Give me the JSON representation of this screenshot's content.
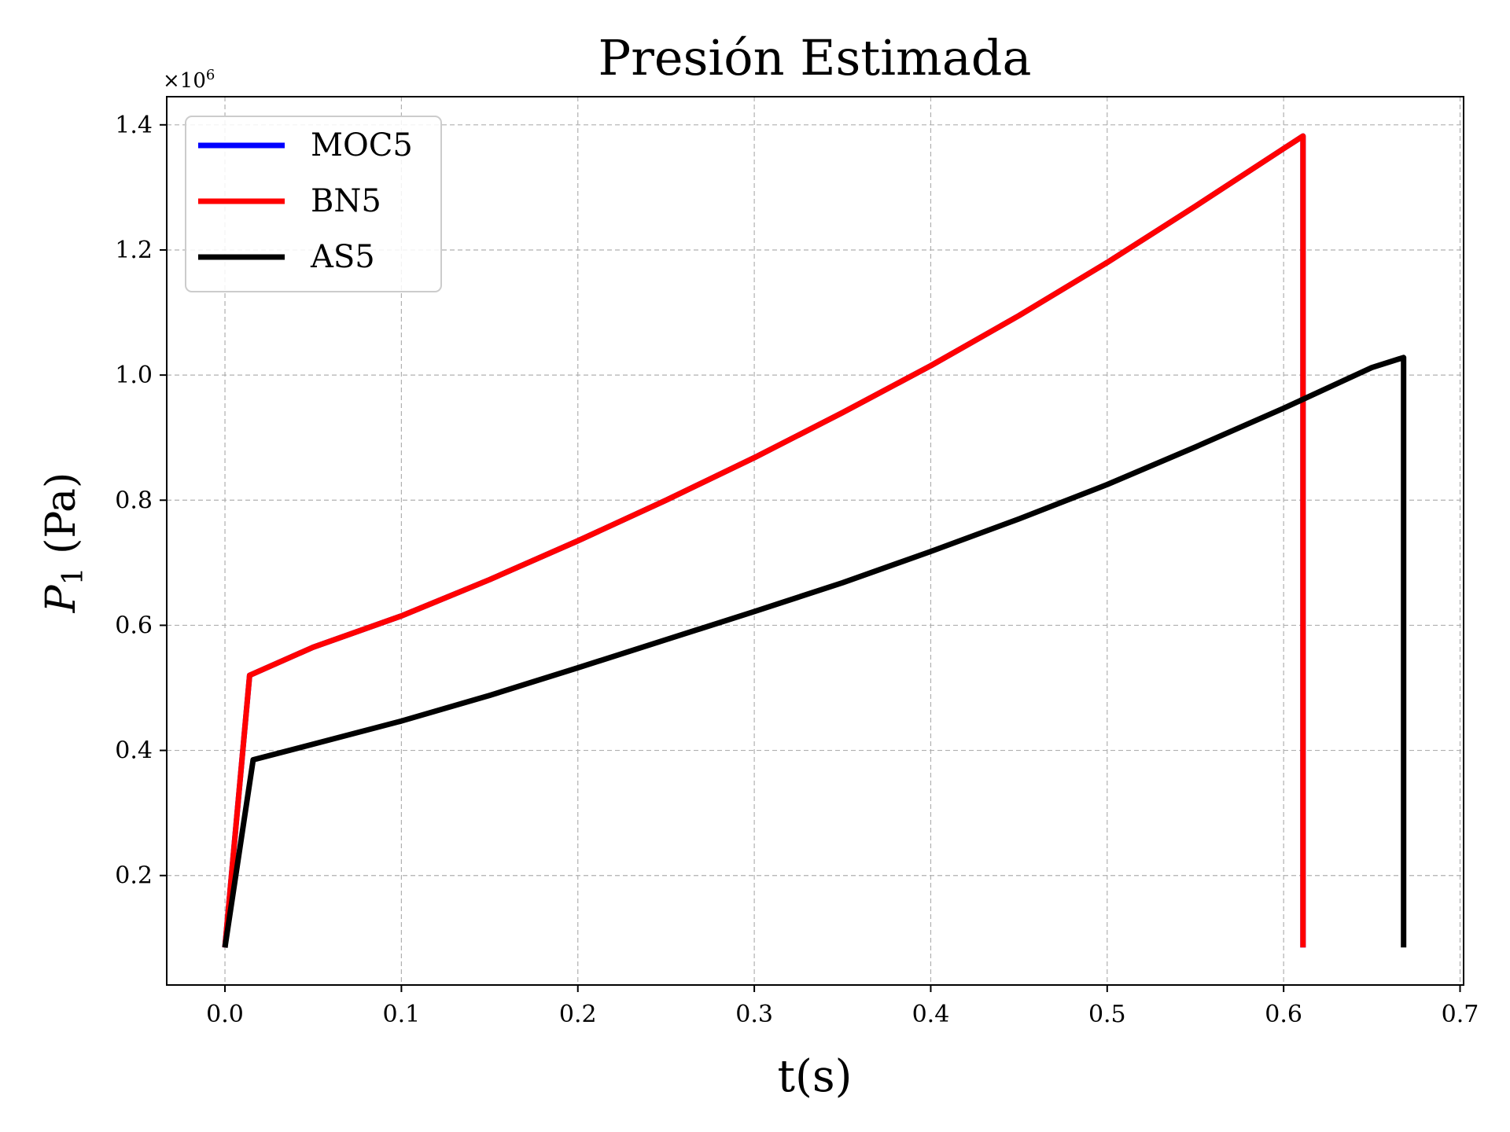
{
  "chart_data": {
    "type": "line",
    "title": "Presión Estimada",
    "xlabel": "t(s)",
    "ylabel": "P",
    "ylabel_subscript": "1",
    "ylabel_unit": " (Pa)",
    "y_offset_label": "×10",
    "y_offset_exponent": "6",
    "xlim": [
      -0.033,
      0.702
    ],
    "ylim": [
      0.025,
      1.445
    ],
    "xticks": [
      0.0,
      0.1,
      0.2,
      0.3,
      0.4,
      0.5,
      0.6,
      0.7
    ],
    "xtick_labels": [
      "0.0",
      "0.1",
      "0.2",
      "0.3",
      "0.4",
      "0.5",
      "0.6",
      "0.7"
    ],
    "yticks": [
      0.2,
      0.4,
      0.6,
      0.8,
      1.0,
      1.2,
      1.4
    ],
    "ytick_labels": [
      "0.2",
      "0.4",
      "0.6",
      "0.8",
      "1.0",
      "1.2",
      "1.4"
    ],
    "grid": true,
    "legend_position": "top-left",
    "series": [
      {
        "name": "MOC5",
        "color": "#0000ff",
        "x": [
          0.0,
          0.014,
          0.05,
          0.1,
          0.15,
          0.2,
          0.25,
          0.3,
          0.35,
          0.4,
          0.45,
          0.5,
          0.55,
          0.6,
          0.611,
          0.611
        ],
        "y": [
          0.085,
          0.52,
          0.565,
          0.615,
          0.673,
          0.735,
          0.8,
          0.868,
          0.94,
          1.015,
          1.095,
          1.18,
          1.27,
          1.362,
          1.382,
          0.085
        ]
      },
      {
        "name": "BN5",
        "color": "#ff0000",
        "x": [
          0.0,
          0.014,
          0.05,
          0.1,
          0.15,
          0.2,
          0.25,
          0.3,
          0.35,
          0.4,
          0.45,
          0.5,
          0.55,
          0.6,
          0.611,
          0.611
        ],
        "y": [
          0.085,
          0.52,
          0.565,
          0.615,
          0.673,
          0.735,
          0.8,
          0.868,
          0.94,
          1.015,
          1.095,
          1.18,
          1.27,
          1.362,
          1.382,
          0.085
        ]
      },
      {
        "name": "AS5",
        "color": "#000000",
        "x": [
          0.0,
          0.016,
          0.05,
          0.1,
          0.15,
          0.2,
          0.25,
          0.3,
          0.35,
          0.4,
          0.45,
          0.5,
          0.55,
          0.6,
          0.65,
          0.668,
          0.668
        ],
        "y": [
          0.085,
          0.385,
          0.41,
          0.447,
          0.488,
          0.532,
          0.577,
          0.622,
          0.668,
          0.718,
          0.77,
          0.825,
          0.885,
          0.947,
          1.012,
          1.028,
          0.085
        ]
      }
    ]
  }
}
